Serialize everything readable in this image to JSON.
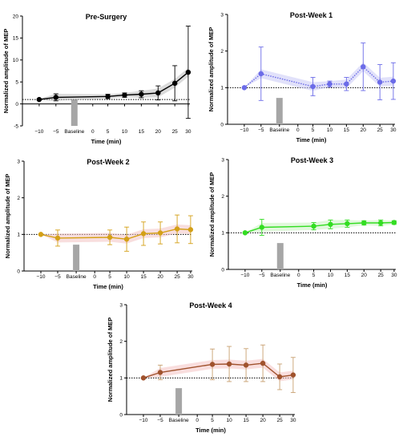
{
  "chart_data": [
    {
      "type": "line",
      "title": "Pre-Surgery",
      "xlabel": "Time (min)",
      "ylabel": "Normalized amplitude of MEP",
      "ylim": [
        -5,
        20
      ],
      "yticks": [
        -5,
        0,
        5,
        10,
        15,
        20
      ],
      "xtick_labels": [
        "−10",
        "−5",
        "Baseline",
        "0",
        "5",
        "10",
        "15",
        "20",
        "25",
        "30"
      ],
      "x": [
        -10,
        -5,
        5,
        10,
        15,
        20,
        25,
        30
      ],
      "values": [
        1.0,
        1.5,
        1.7,
        2.0,
        2.2,
        2.5,
        4.7,
        7.2
      ],
      "errors": [
        0.15,
        0.8,
        0.5,
        0.5,
        0.8,
        1.6,
        4.0,
        10.5
      ],
      "baseline_bar": 1.0,
      "reference_line": 1.0,
      "color": "#000000",
      "band_color": "#bdbdbd",
      "line_style": "solid"
    },
    {
      "type": "line",
      "title": "Post-Week 1",
      "xlabel": "Time (min)",
      "ylabel": "Normalized amplitude of MEP",
      "ylim": [
        0,
        3
      ],
      "yticks": [
        0,
        1,
        2,
        3
      ],
      "xtick_labels": [
        "−10",
        "−5",
        "Baseline",
        "0",
        "5",
        "10",
        "15",
        "20",
        "25",
        "30"
      ],
      "x": [
        -10,
        -5,
        5,
        10,
        15,
        20,
        25,
        30
      ],
      "values": [
        1.0,
        1.38,
        1.03,
        1.1,
        1.1,
        1.57,
        1.15,
        1.18
      ],
      "errors": [
        0.0,
        0.73,
        0.25,
        0.08,
        0.18,
        0.65,
        0.48,
        0.5
      ],
      "baseline_bar": 0.72,
      "reference_line": 1.0,
      "color": "#6b6be8",
      "band_color": "#c9c9f5",
      "line_style": "dotted"
    },
    {
      "type": "line",
      "title": "Post-Week 2",
      "xlabel": "Time (min)",
      "ylabel": "Normalized amplitude of MEP",
      "ylim": [
        0,
        3
      ],
      "yticks": [
        0,
        1,
        2,
        3
      ],
      "xtick_labels": [
        "−10",
        "−5",
        "Baseline",
        "0",
        "5",
        "10",
        "15",
        "20",
        "25",
        "30"
      ],
      "x": [
        -10,
        -5,
        5,
        10,
        15,
        20,
        25,
        30
      ],
      "values": [
        1.0,
        0.9,
        0.92,
        0.87,
        1.02,
        1.04,
        1.15,
        1.13
      ],
      "errors": [
        0.0,
        0.22,
        0.2,
        0.33,
        0.32,
        0.3,
        0.38,
        0.38
      ],
      "baseline_bar": 0.72,
      "reference_line": 1.0,
      "color": "#d4a017",
      "band_color": "#f2c2c2",
      "line_style": "solid"
    },
    {
      "type": "line",
      "title": "Post-Week 3",
      "xlabel": "Time (min)",
      "ylabel": "Normalized amplitude of MEP",
      "ylim": [
        0,
        3
      ],
      "yticks": [
        0,
        1,
        2,
        3
      ],
      "xtick_labels": [
        "−10",
        "−5",
        "Baseline",
        "0",
        "5",
        "10",
        "15",
        "20",
        "25",
        "30"
      ],
      "x": [
        -10,
        -5,
        5,
        10,
        15,
        20,
        25,
        30
      ],
      "values": [
        1.0,
        1.15,
        1.18,
        1.23,
        1.25,
        1.27,
        1.27,
        1.28
      ],
      "errors": [
        0.0,
        0.22,
        0.1,
        0.12,
        0.1,
        0.06,
        0.08,
        0.05
      ],
      "baseline_bar": 0.72,
      "reference_line": 1.0,
      "color": "#33dd22",
      "band_color": "#c8f2c0",
      "line_style": "solid"
    },
    {
      "type": "line",
      "title": "Post-Week 4",
      "xlabel": "Time (min)",
      "ylabel": "Normalized amplitude of MEP",
      "ylim": [
        0,
        3
      ],
      "yticks": [
        0,
        1,
        2,
        3
      ],
      "xtick_labels": [
        "−10",
        "−5",
        "Baseline",
        "0",
        "5",
        "10",
        "15",
        "20",
        "25",
        "30"
      ],
      "x": [
        -10,
        -5,
        5,
        10,
        15,
        20,
        25,
        30
      ],
      "values": [
        1.0,
        1.15,
        1.37,
        1.38,
        1.35,
        1.4,
        1.03,
        1.08
      ],
      "errors": [
        0.0,
        0.2,
        0.42,
        0.48,
        0.45,
        0.5,
        0.35,
        0.48
      ],
      "baseline_bar": 0.72,
      "reference_line": 1.0,
      "color": "#a0522d",
      "band_color": "#f4c3c3",
      "line_style": "solid",
      "errorbar_color": "#c8a070"
    }
  ]
}
